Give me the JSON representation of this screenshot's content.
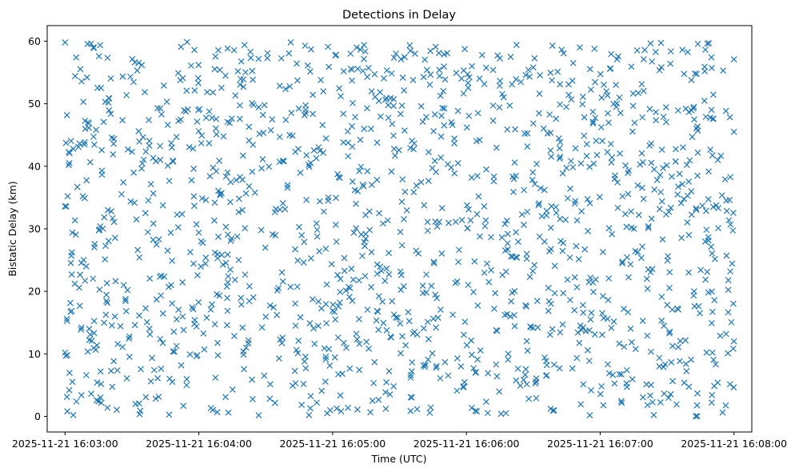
{
  "chart_data": {
    "type": "scatter",
    "title": "Detections in Delay",
    "xlabel": "Time (UTC)",
    "ylabel": "Bistatic Delay (km)",
    "xlim": [
      "2025-11-21 16:02:52",
      "2025-11-21 16:08:08"
    ],
    "ylim": [
      -2.5,
      62.5
    ],
    "x_ticks": [
      "2025-11-21 16:03:00",
      "2025-11-21 16:04:00",
      "2025-11-21 16:05:00",
      "2025-11-21 16:06:00",
      "2025-11-21 16:07:00",
      "2025-11-21 16:08:00"
    ],
    "y_ticks": [
      "0",
      "10",
      "20",
      "30",
      "40",
      "50",
      "60"
    ],
    "grid": false,
    "legend": "none",
    "marker": "x",
    "color": "#1f77b4",
    "series": [
      {
        "x_range": [
          "2025-11-21 16:03:00",
          "2025-11-21 16:08:00"
        ],
        "y_range": [
          0,
          60
        ],
        "approx_point_count": 1500,
        "distribution": "roughly uniform random scatter across full time and delay range",
        "sample_points": [
          [
            "2025-11-21 16:03:00",
            10.2
          ],
          [
            "2025-11-21 16:03:00",
            33.6
          ],
          [
            "2025-11-21 16:03:00",
            59.8
          ],
          [
            "2025-11-21 16:03:01",
            0.8
          ],
          [
            "2025-11-21 16:03:02",
            42.1
          ],
          [
            "2025-11-21 16:03:03",
            22.7
          ],
          [
            "2025-11-21 16:03:05",
            57.4
          ],
          [
            "2025-11-21 16:03:08",
            35.2
          ],
          [
            "2025-11-21 16:03:12",
            12.1
          ],
          [
            "2025-11-21 16:03:15",
            2.4
          ],
          [
            "2025-11-21 16:03:18",
            50.3
          ],
          [
            "2025-11-21 16:03:22",
            31.1
          ],
          [
            "2025-11-21 16:03:28",
            20.2
          ],
          [
            "2025-11-21 16:03:33",
            45.6
          ],
          [
            "2025-11-21 16:03:40",
            7.4
          ],
          [
            "2025-11-21 16:03:46",
            26.5
          ],
          [
            "2025-11-21 16:03:52",
            59.1
          ],
          [
            "2025-11-21 16:03:58",
            14.8
          ],
          [
            "2025-11-21 16:04:05",
            38.4
          ],
          [
            "2025-11-21 16:04:12",
            3.1
          ],
          [
            "2025-11-21 16:04:20",
            52.7
          ],
          [
            "2025-11-21 16:04:28",
            29.8
          ],
          [
            "2025-11-21 16:04:35",
            16.2
          ],
          [
            "2025-11-21 16:04:42",
            44.9
          ],
          [
            "2025-11-21 16:04:50",
            1.3
          ],
          [
            "2025-11-21 16:04:58",
            34.5
          ],
          [
            "2025-11-21 16:05:05",
            55.2
          ],
          [
            "2025-11-21 16:05:12",
            11.6
          ],
          [
            "2025-11-21 16:05:20",
            24.3
          ],
          [
            "2025-11-21 16:05:28",
            41.7
          ],
          [
            "2025-11-21 16:05:35",
            6.2
          ],
          [
            "2025-11-21 16:05:42",
            19.8
          ],
          [
            "2025-11-21 16:05:50",
            57.9
          ],
          [
            "2025-11-21 16:05:58",
            31.4
          ],
          [
            "2025-11-21 16:06:05",
            9.1
          ],
          [
            "2025-11-21 16:06:12",
            47.3
          ],
          [
            "2025-11-21 16:06:20",
            25.6
          ],
          [
            "2025-11-21 16:06:28",
            2.8
          ],
          [
            "2025-11-21 16:06:35",
            36.2
          ],
          [
            "2025-11-21 16:06:42",
            53.1
          ],
          [
            "2025-11-21 16:06:50",
            13.4
          ],
          [
            "2025-11-21 16:06:58",
            21.9
          ],
          [
            "2025-11-21 16:07:05",
            40.6
          ],
          [
            "2025-11-21 16:07:12",
            4.7
          ],
          [
            "2025-11-21 16:07:20",
            58.6
          ],
          [
            "2025-11-21 16:07:28",
            28.3
          ],
          [
            "2025-11-21 16:07:35",
            17.1
          ],
          [
            "2025-11-21 16:07:42",
            49.5
          ],
          [
            "2025-11-21 16:07:50",
            2.2
          ],
          [
            "2025-11-21 16:07:56",
            37.9
          ],
          [
            "2025-11-21 16:08:00",
            12.0
          ],
          [
            "2025-11-21 16:08:00",
            45.5
          ],
          [
            "2025-11-21 16:08:00",
            57.1
          ]
        ]
      }
    ]
  }
}
